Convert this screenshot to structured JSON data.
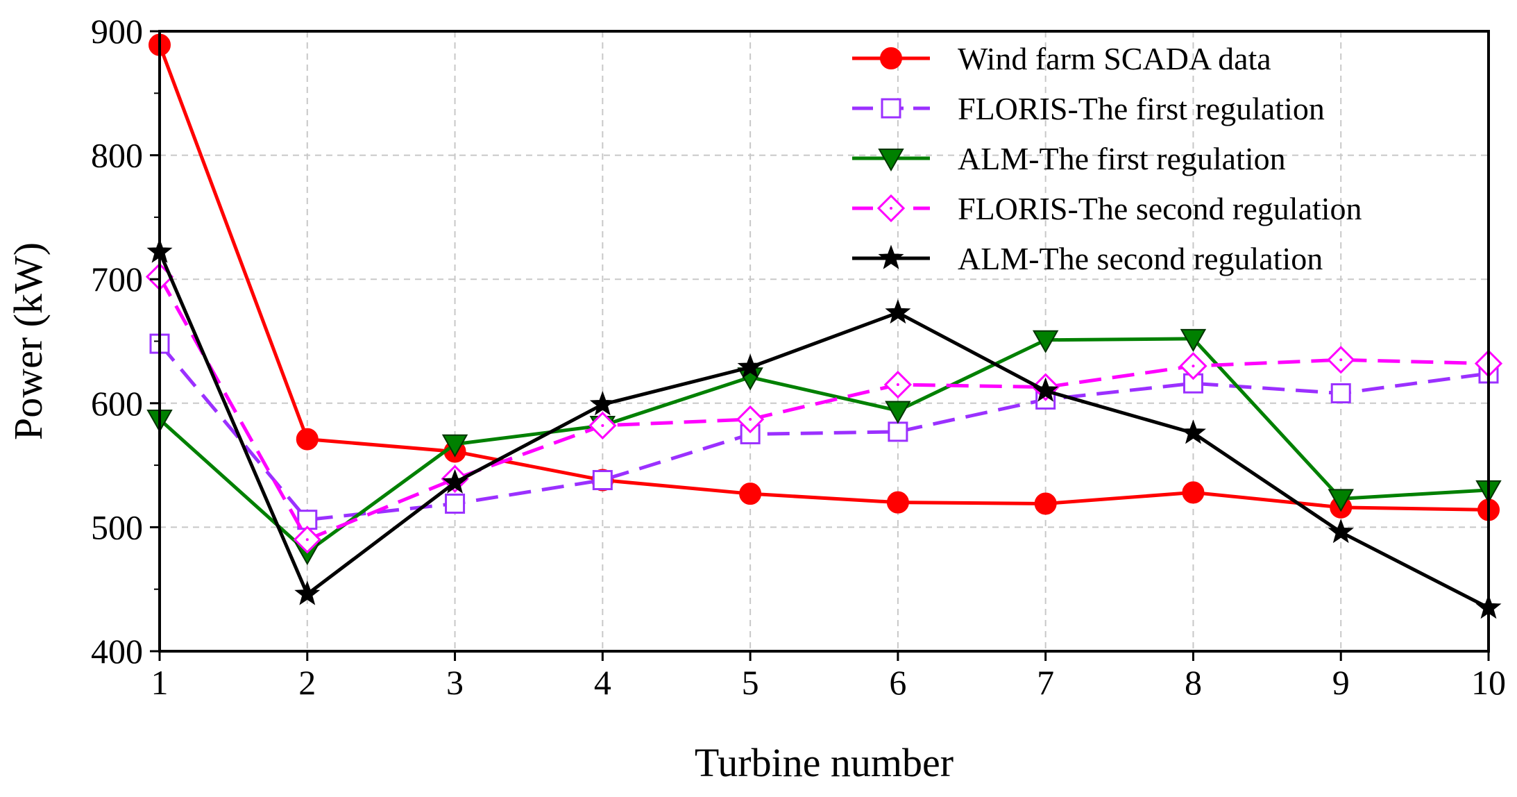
{
  "chart_data": {
    "type": "line",
    "title": "",
    "xlabel": "Turbine number",
    "ylabel": "Power (kW)",
    "x": [
      1,
      2,
      3,
      4,
      5,
      6,
      7,
      8,
      9,
      10
    ],
    "xlim": [
      1,
      10
    ],
    "ylim": [
      400,
      900
    ],
    "yticks": [
      400,
      500,
      600,
      700,
      800,
      900
    ],
    "grid": true,
    "legend_position": "top-right",
    "series": [
      {
        "name": "Wind farm SCADA data",
        "values": [
          889,
          571,
          561,
          538,
          527,
          520,
          519,
          528,
          516,
          514
        ],
        "color": "#ff0000",
        "dash": "solid",
        "marker": "circle"
      },
      {
        "name": "FLORIS-The first regulation",
        "values": [
          648,
          506,
          519,
          538,
          575,
          577,
          603,
          616,
          608,
          624
        ],
        "color": "#9b30ff",
        "dash": "dashed",
        "marker": "square-open"
      },
      {
        "name": "ALM-The first regulation",
        "values": [
          587,
          480,
          567,
          582,
          621,
          594,
          651,
          652,
          523,
          530
        ],
        "color": "#008000",
        "dash": "solid",
        "marker": "triangle-down"
      },
      {
        "name": "FLORIS-The second regulation",
        "values": [
          702,
          490,
          539,
          582,
          587,
          615,
          613,
          630,
          635,
          632
        ],
        "color": "#ff00ff",
        "dash": "dashed",
        "marker": "diamond-open"
      },
      {
        "name": "ALM-The second regulation",
        "values": [
          722,
          446,
          536,
          599,
          629,
          673,
          610,
          576,
          496,
          435
        ],
        "color": "#000000",
        "dash": "solid",
        "marker": "star"
      }
    ]
  }
}
